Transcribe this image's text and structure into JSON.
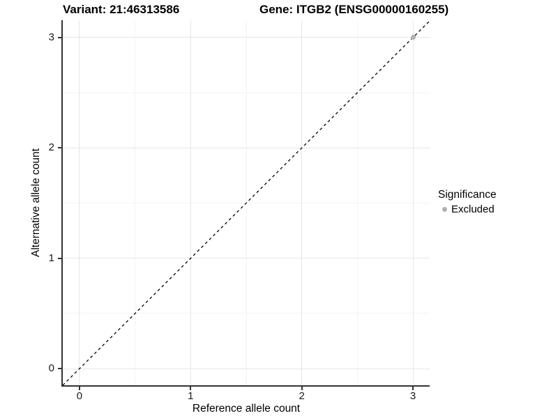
{
  "figure": {
    "title_left": "Variant: 21:46313586",
    "title_right": "Gene: ITGB2 (ENSG00000160255)"
  },
  "chart_data": {
    "type": "scatter",
    "title_left": "Variant: 21:46313586",
    "title_right": "Gene: ITGB2 (ENSG00000160255)",
    "xlabel": "Reference allele count",
    "ylabel": "Alternative allele count",
    "xlim": [
      -0.15,
      3.15
    ],
    "ylim": [
      -0.15,
      3.15
    ],
    "xticks": [
      0,
      1,
      2,
      3
    ],
    "yticks": [
      0,
      1,
      2,
      3
    ],
    "minor_xticks": [
      0.5,
      1.5,
      2.5
    ],
    "minor_yticks": [
      0.5,
      1.5,
      2.5
    ],
    "grid": "on",
    "reference_line": {
      "type": "identity",
      "slope": 1,
      "intercept": 0,
      "style": "dashed",
      "color": "#000000"
    },
    "series": [
      {
        "name": "Excluded",
        "color": "#b0b0b0",
        "marker": "circle",
        "points": [
          {
            "x": 3,
            "y": 3
          }
        ]
      }
    ],
    "legend": {
      "title": "Significance",
      "position": "right",
      "entries": [
        {
          "label": "Excluded",
          "color": "#b0b0b0"
        }
      ]
    },
    "colors": {
      "excluded_point": "#b0b0b0",
      "grid_major": "#e6e6e6",
      "grid_minor": "#f3f3f3",
      "axis_line": "#333333",
      "text": "#000000"
    }
  }
}
